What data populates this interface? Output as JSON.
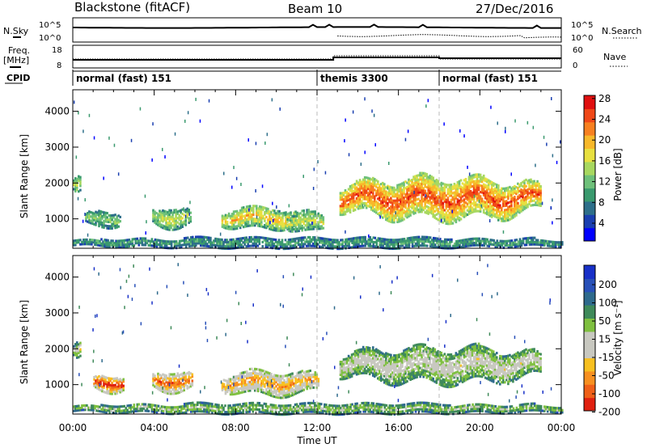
{
  "header": {
    "radar": "Blackstone (fitACF)",
    "beam": "Beam 10",
    "date": "27/Dec/2016"
  },
  "side_labels": {
    "nsky": "N.Sky",
    "nsearch": "N.Search",
    "freq": "Freq.",
    "freq_unit": "[MHz]",
    "nave": "Nave",
    "cpid": "CPID"
  },
  "small_axes": {
    "left_top": "10^5",
    "left_bot": "10^0",
    "right_top": "10^5",
    "right_bot": "10^0",
    "freq_top": "18",
    "freq_bot": "8",
    "nave_top": "60",
    "nave_bot": "0"
  },
  "cpid_segments": [
    {
      "label": "normal (fast) 151",
      "start": 0,
      "end": 12
    },
    {
      "label": "themis 3300",
      "start": 12,
      "end": 18
    },
    {
      "label": "normal (fast) 151",
      "start": 18,
      "end": 24
    }
  ],
  "x_axis": {
    "label": "Time UT",
    "ticks": [
      "00:00",
      "04:00",
      "08:00",
      "12:00",
      "16:00",
      "20:00",
      "00:00"
    ]
  },
  "y_axis": {
    "label": "Slant Range [km]",
    "ticks": [
      "1000",
      "2000",
      "3000",
      "4000"
    ]
  },
  "power_colorbar": {
    "label": "Power [dB]",
    "ticks": [
      "4",
      "8",
      "12",
      "16",
      "20",
      "24",
      "28"
    ],
    "colors": [
      "#0000ff",
      "#1a3fb0",
      "#2e6f8a",
      "#3a9a6e",
      "#6ec07a",
      "#a8d860",
      "#e8e040",
      "#f8b82a",
      "#f88020",
      "#f04818",
      "#e01010"
    ]
  },
  "velocity_colorbar": {
    "label": "Velocity [m s⁻¹]",
    "ticks": [
      "200",
      "100",
      "50",
      "15",
      "-15",
      "-50",
      "-100",
      "-200"
    ],
    "colors": [
      "#1830c8",
      "#2850b8",
      "#2e6a8c",
      "#3f8a5a",
      "#7fc040",
      "#c8c8c0",
      "#c8c8c0",
      "#f8c020",
      "#f89020",
      "#f06018",
      "#e02010"
    ]
  },
  "chart_data": {
    "type": "heatmap",
    "title": "Blackstone (fitACF)",
    "subtitle": "Beam 10",
    "xlabel": "Time UT",
    "ylabel": "Slant Range [km]",
    "xlim": [
      0,
      24
    ],
    "ylim": [
      180,
      4600
    ],
    "panels": [
      {
        "name": "Power [dB]",
        "features": [
          {
            "t0": 0.0,
            "t1": 0.4,
            "r0": 1700,
            "r1": 2150,
            "level": 5
          },
          {
            "t0": 0.6,
            "t1": 2.3,
            "r0": 750,
            "r1": 1200,
            "level": 4
          },
          {
            "t0": 3.9,
            "t1": 5.8,
            "r0": 750,
            "r1": 1300,
            "level": 5
          },
          {
            "t0": 7.3,
            "t1": 11.0,
            "r0": 700,
            "r1": 1300,
            "level": 6
          },
          {
            "t0": 10.5,
            "t1": 12.3,
            "r0": 600,
            "r1": 1150,
            "level": 5
          },
          {
            "t0": 13.1,
            "t1": 23.0,
            "r0": 1000,
            "r1": 2100,
            "level": 8
          },
          {
            "t0": 0.0,
            "t1": 24.0,
            "r0": 180,
            "r1": 450,
            "level": 3
          }
        ]
      },
      {
        "name": "Velocity [m s-1]",
        "features": [
          {
            "t0": 0.0,
            "t1": 0.4,
            "r0": 1700,
            "r1": 2150,
            "level": 5
          },
          {
            "t0": 1.0,
            "t1": 2.5,
            "r0": 780,
            "r1": 1250,
            "level": 9
          },
          {
            "t0": 3.9,
            "t1": 5.9,
            "r0": 800,
            "r1": 1350,
            "level": 8
          },
          {
            "t0": 7.3,
            "t1": 12.1,
            "r0": 700,
            "r1": 1350,
            "level": 7
          },
          {
            "t0": 13.1,
            "t1": 23.0,
            "r0": 1050,
            "r1": 2000,
            "level": 5
          },
          {
            "t0": 0.0,
            "t1": 24.0,
            "r0": 180,
            "r1": 450,
            "level": 4
          }
        ]
      }
    ],
    "noise": {
      "nsky_level": 0.15,
      "nsearch_level": 0.65
    }
  }
}
